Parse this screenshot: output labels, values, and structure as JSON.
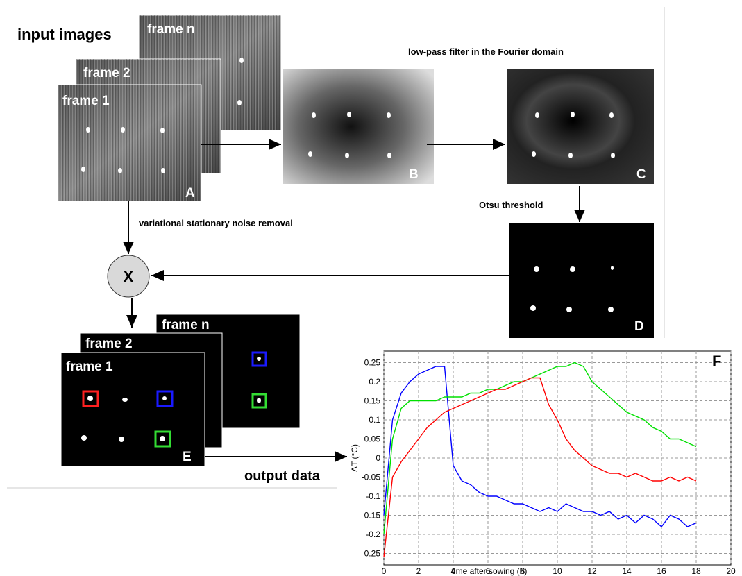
{
  "diagram": {
    "input_title": "input images",
    "input_frames": [
      "frame n",
      "frame 2",
      "frame 1"
    ],
    "panel_letters": [
      "A",
      "B",
      "C",
      "D",
      "E",
      "F"
    ],
    "lowpass": "low-pass filter in the Fourier domain",
    "otsu": "Otsu threshold",
    "noise_removal": "variational stationary noise removal",
    "multiply": "X",
    "output_frames": [
      "frame n",
      "frame 2",
      "frame 1"
    ],
    "output": "output data"
  },
  "chart_data": {
    "type": "line",
    "xlabel": "time after sowing (h)",
    "ylabel": "ΔT (°C)",
    "xlim": [
      0,
      20
    ],
    "xticks": [
      0,
      2,
      4,
      6,
      8,
      10,
      12,
      14,
      16,
      18,
      20
    ],
    "ylim": [
      -0.28,
      0.28
    ],
    "yticks": [
      -0.25,
      -0.2,
      -0.15,
      -0.1,
      -0.05,
      0,
      0.05,
      0.1,
      0.15,
      0.2,
      0.25
    ],
    "grid": true,
    "x": [
      0,
      0.5,
      1,
      1.5,
      2,
      2.5,
      3,
      3.5,
      4,
      4.5,
      5,
      5.5,
      6,
      6.5,
      7,
      7.5,
      8,
      8.5,
      9,
      9.5,
      10,
      10.5,
      11,
      11.5,
      12,
      12.5,
      13,
      13.5,
      14,
      14.5,
      15,
      15.5,
      16,
      16.5,
      17,
      17.5,
      18
    ],
    "series": [
      {
        "color": "#0000ff",
        "values": [
          -0.15,
          0.1,
          0.17,
          0.2,
          0.22,
          0.23,
          0.24,
          0.24,
          -0.02,
          -0.06,
          -0.07,
          -0.09,
          -0.1,
          -0.1,
          -0.11,
          -0.12,
          -0.12,
          -0.13,
          -0.14,
          -0.13,
          -0.14,
          -0.12,
          -0.13,
          -0.14,
          -0.14,
          -0.15,
          -0.14,
          -0.16,
          -0.15,
          -0.17,
          -0.15,
          -0.16,
          -0.18,
          -0.15,
          -0.16,
          -0.18,
          -0.17
        ]
      },
      {
        "color": "#00e000",
        "values": [
          -0.2,
          0.05,
          0.13,
          0.15,
          0.15,
          0.15,
          0.15,
          0.16,
          0.16,
          0.16,
          0.17,
          0.17,
          0.18,
          0.18,
          0.19,
          0.2,
          0.2,
          0.21,
          0.22,
          0.23,
          0.24,
          0.24,
          0.25,
          0.24,
          0.2,
          0.18,
          0.16,
          0.14,
          0.12,
          0.11,
          0.1,
          0.08,
          0.07,
          0.05,
          0.05,
          0.04,
          0.03
        ]
      },
      {
        "color": "#ff0000",
        "values": [
          -0.26,
          -0.05,
          -0.01,
          0.02,
          0.05,
          0.08,
          0.1,
          0.12,
          0.13,
          0.14,
          0.15,
          0.16,
          0.17,
          0.18,
          0.18,
          0.19,
          0.2,
          0.21,
          0.21,
          0.14,
          0.1,
          0.05,
          0.02,
          0,
          -0.02,
          -0.03,
          -0.04,
          -0.04,
          -0.05,
          -0.04,
          -0.05,
          -0.06,
          -0.06,
          -0.05,
          -0.06,
          -0.05,
          -0.06
        ]
      }
    ]
  }
}
